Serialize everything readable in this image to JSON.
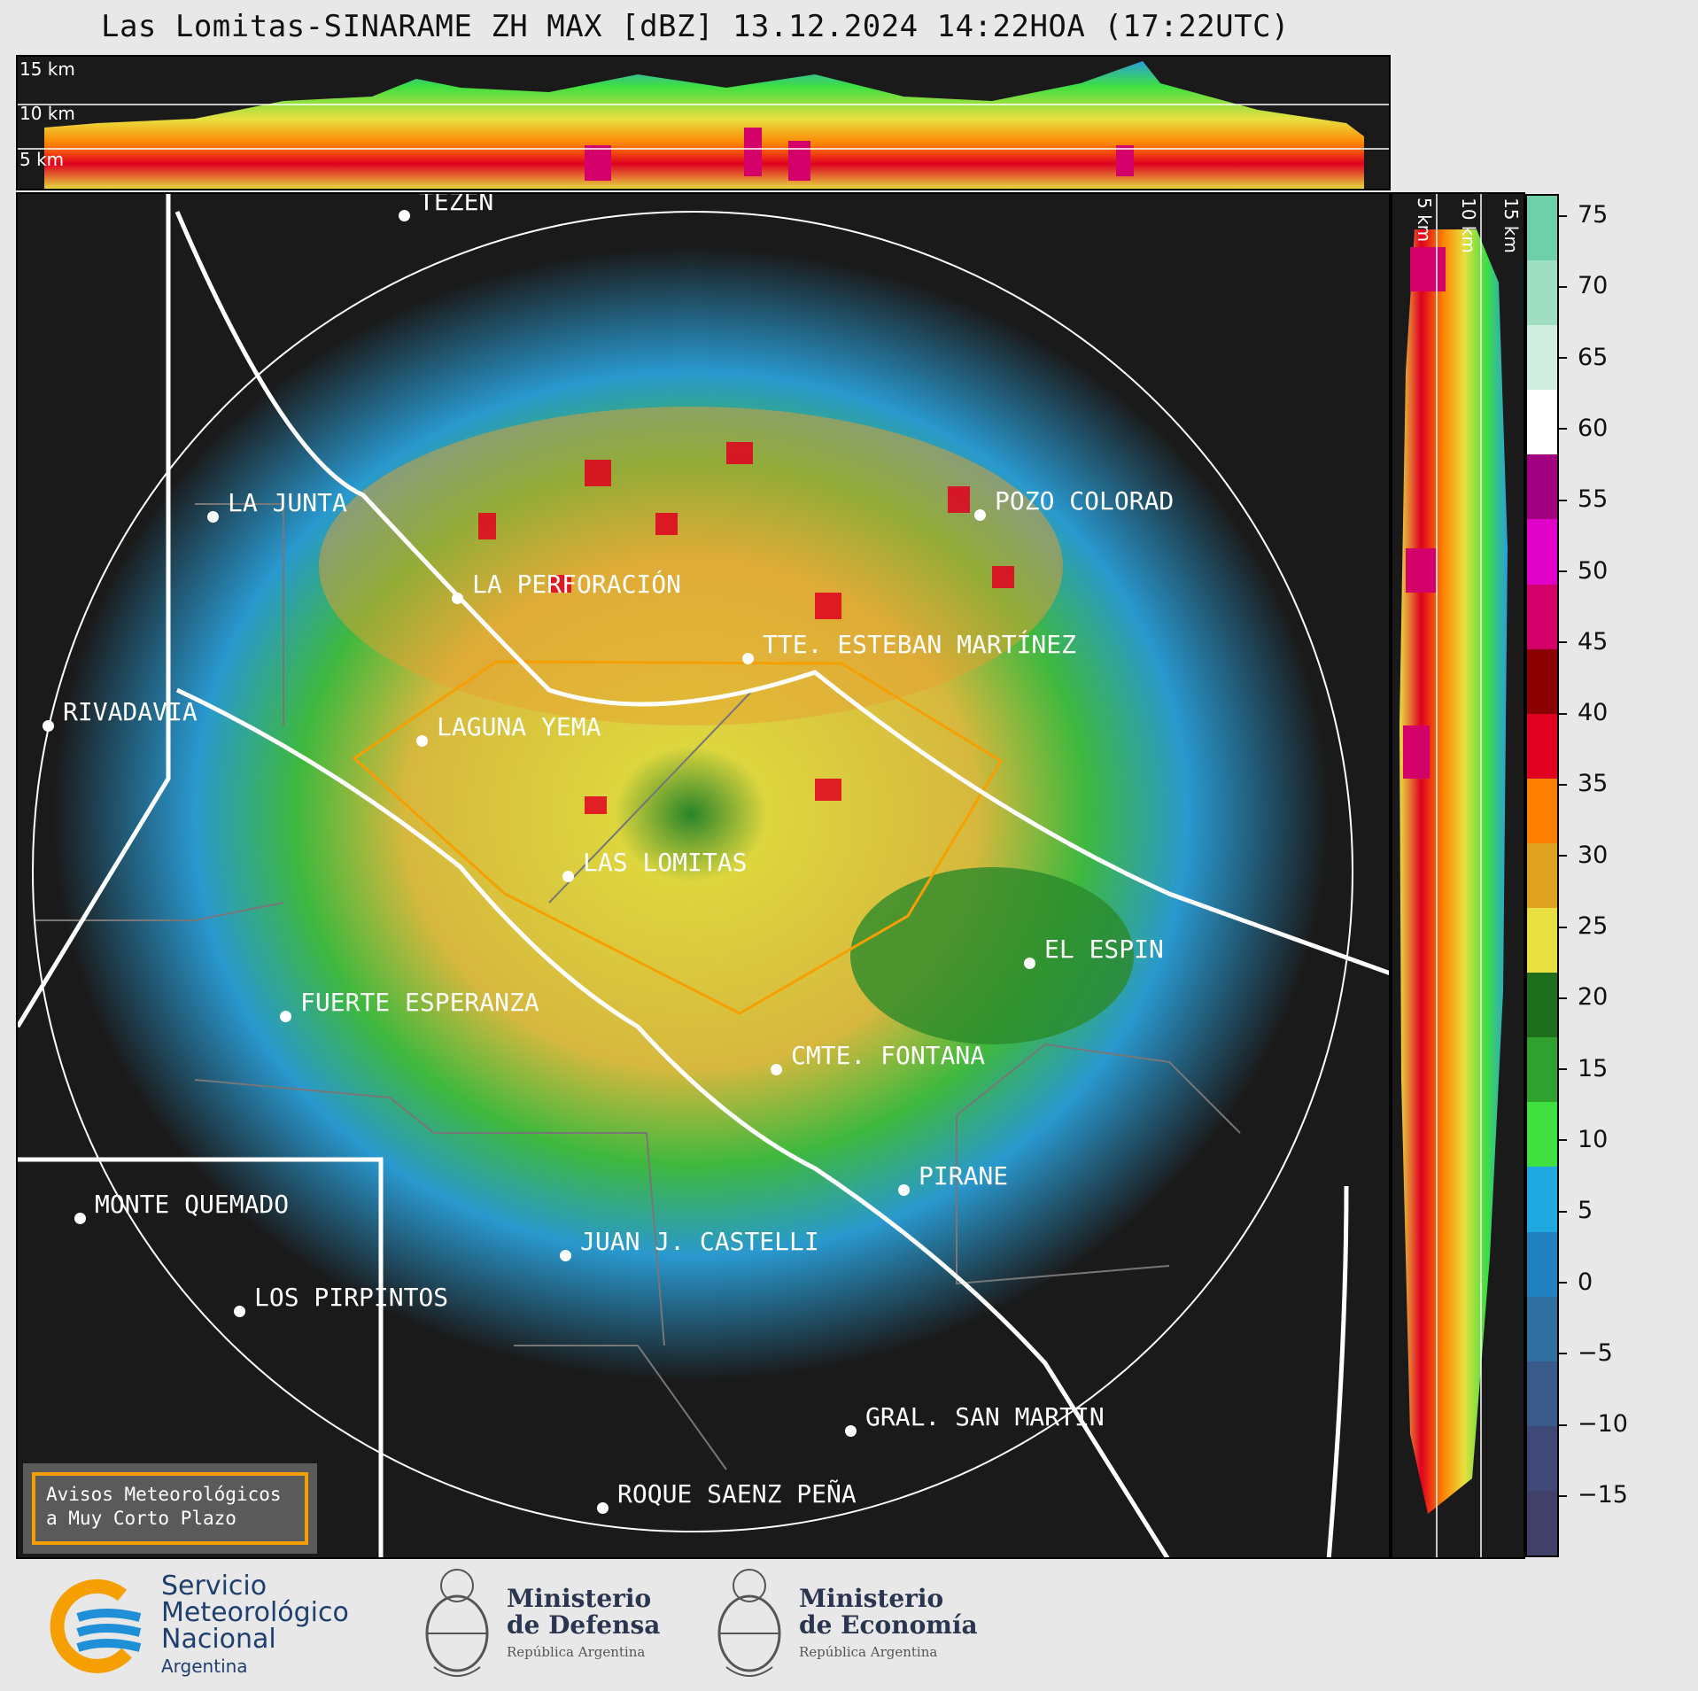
{
  "title": "Las Lomitas-SINARAME ZH MAX [dBZ] 13.12.2024 14:22HOA (17:22UTC)",
  "top_cross_section": {
    "labels": [
      "15 km",
      "10 km",
      "5 km"
    ]
  },
  "side_cross_section": {
    "labels": [
      "5 km",
      "10 km",
      "15 km"
    ]
  },
  "colorbar": {
    "ticks": [
      "75",
      "70",
      "65",
      "60",
      "55",
      "50",
      "45",
      "40",
      "35",
      "30",
      "25",
      "20",
      "15",
      "10",
      "5",
      "0",
      "−5",
      "−10",
      "−15"
    ],
    "segments": [
      {
        "color": "#6fcfa8"
      },
      {
        "color": "#9fdec0"
      },
      {
        "color": "#cfeedf"
      },
      {
        "color": "#ffffff"
      },
      {
        "color": "#a0007f"
      },
      {
        "color": "#e000c8"
      },
      {
        "color": "#d4006a"
      },
      {
        "color": "#8b0000"
      },
      {
        "color": "#e00020"
      },
      {
        "color": "#ff8000"
      },
      {
        "color": "#e0a020"
      },
      {
        "color": "#e8e040"
      },
      {
        "color": "#1e6e1e"
      },
      {
        "color": "#30a030"
      },
      {
        "color": "#40e040"
      },
      {
        "color": "#20a8e0"
      },
      {
        "color": "#2080c0"
      },
      {
        "color": "#3070a0"
      },
      {
        "color": "#3a5a8a"
      },
      {
        "color": "#404878"
      },
      {
        "color": "#404068"
      }
    ]
  },
  "cities": [
    {
      "name": "TEZÉN"
    },
    {
      "name": "LA JUNTA"
    },
    {
      "name": "POZO COLORAD"
    },
    {
      "name": "LA PERFORACIÓN"
    },
    {
      "name": "TTE. ESTEBAN MARTÍNEZ"
    },
    {
      "name": "RIVADAVIA"
    },
    {
      "name": "LAGUNA YEMA"
    },
    {
      "name": "LAS LOMITAS"
    },
    {
      "name": "EL ESPIN"
    },
    {
      "name": "FUERTE ESPERANZA"
    },
    {
      "name": "CMTE. FONTANA"
    },
    {
      "name": "PIRANE"
    },
    {
      "name": "MONTE QUEMADO"
    },
    {
      "name": "JUAN J. CASTELLI"
    },
    {
      "name": "LOS PIRPINTOS"
    },
    {
      "name": "GRAL. SAN MARTIN"
    },
    {
      "name": "ROQUE SAENZ PEÑA"
    }
  ],
  "warning_box": {
    "line1": "Avisos Meteorológicos",
    "line2": "a Muy Corto Plazo"
  },
  "footer": {
    "smn": {
      "line1": "Servicio",
      "line2": "Meteorológico",
      "line3": "Nacional",
      "line4": "Argentina"
    },
    "defensa": {
      "line1": "Ministerio",
      "line2": "de Defensa",
      "line3": "República Argentina"
    },
    "economia": {
      "line1": "Ministerio",
      "line2": "de Economía",
      "line3": "República Argentina"
    }
  }
}
